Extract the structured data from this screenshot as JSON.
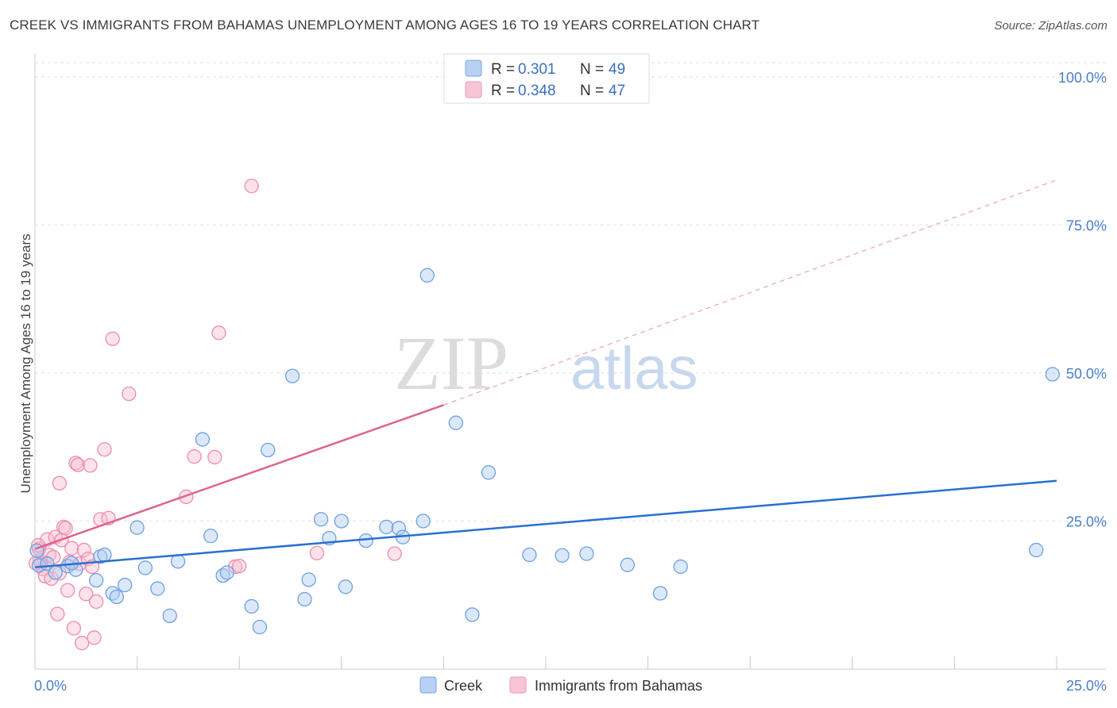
{
  "title": "CREEK VS IMMIGRANTS FROM BAHAMAS UNEMPLOYMENT AMONG AGES 16 TO 19 YEARS CORRELATION CHART",
  "source": "Source: ZipAtlas.com",
  "watermark": {
    "part1": "ZIP",
    "part2": "atlas"
  },
  "colors": {
    "creek": "#6fa0e0",
    "creek_line": "#2a6fd0",
    "bahamas": "#f08cab",
    "bahamas_line": "#e0628e",
    "tick_label": "#4a7fc8"
  },
  "legend": {
    "rows": [
      {
        "r_label": "R =",
        "r_value": "0.301",
        "n_label": "N =",
        "n_value": "49"
      },
      {
        "r_label": "R =",
        "r_value": "0.348",
        "n_label": "N =",
        "n_value": "47"
      }
    ]
  },
  "bottom_legend": {
    "series1": "Creek",
    "series2": "Immigrants from Bahamas"
  },
  "chart_data": {
    "type": "scatter",
    "title": "CREEK VS IMMIGRANTS FROM BAHAMAS UNEMPLOYMENT AMONG AGES 16 TO 19 YEARS CORRELATION CHART",
    "xlabel": "",
    "ylabel": "Unemployment Among Ages 16 to 19 years",
    "xlim": [
      0,
      25
    ],
    "ylim": [
      0,
      105
    ],
    "x_tick_labels": [
      "0.0%",
      "25.0%"
    ],
    "y_tick_labels": [
      {
        "value": 25,
        "label": "25.0%"
      },
      {
        "value": 50,
        "label": "50.0%"
      },
      {
        "value": 75,
        "label": "75.0%"
      },
      {
        "value": 100,
        "label": "100.0%"
      }
    ],
    "series": [
      {
        "name": "Creek",
        "r": 0.301,
        "n": 49,
        "trend": {
          "x1": 0,
          "y1": 17.2,
          "x2": 25,
          "y2": 31.8,
          "dashed_extension": false
        },
        "points": [
          [
            0.1,
            17.5
          ],
          [
            0.3,
            17.8
          ],
          [
            0.5,
            16.3
          ],
          [
            0.8,
            17.4
          ],
          [
            1.0,
            16.8
          ],
          [
            1.5,
            15.0
          ],
          [
            1.6,
            19.0
          ],
          [
            1.7,
            19.3
          ],
          [
            1.9,
            12.8
          ],
          [
            2.0,
            12.2
          ],
          [
            2.2,
            14.2
          ],
          [
            2.5,
            23.9
          ],
          [
            2.7,
            17.1
          ],
          [
            3.0,
            13.6
          ],
          [
            3.3,
            9.0
          ],
          [
            3.5,
            18.2
          ],
          [
            4.1,
            38.8
          ],
          [
            4.3,
            22.5
          ],
          [
            4.6,
            15.8
          ],
          [
            4.7,
            16.3
          ],
          [
            5.3,
            10.6
          ],
          [
            5.5,
            7.1
          ],
          [
            5.7,
            37.0
          ],
          [
            6.3,
            49.5
          ],
          [
            6.6,
            11.8
          ],
          [
            6.7,
            15.1
          ],
          [
            7.0,
            25.3
          ],
          [
            7.2,
            22.1
          ],
          [
            7.5,
            25.0
          ],
          [
            7.6,
            13.9
          ],
          [
            8.1,
            21.7
          ],
          [
            8.6,
            24.0
          ],
          [
            8.9,
            23.8
          ],
          [
            9.0,
            22.3
          ],
          [
            9.5,
            25.0
          ],
          [
            9.6,
            66.5
          ],
          [
            10.3,
            41.6
          ],
          [
            10.7,
            9.2
          ],
          [
            11.1,
            33.2
          ],
          [
            12.1,
            19.3
          ],
          [
            12.9,
            19.2
          ],
          [
            13.5,
            19.5
          ],
          [
            14.5,
            17.6
          ],
          [
            15.3,
            12.8
          ],
          [
            15.8,
            17.3
          ],
          [
            24.5,
            20.1
          ],
          [
            24.9,
            49.8
          ],
          [
            0.05,
            20.0
          ],
          [
            0.9,
            17.9
          ]
        ]
      },
      {
        "name": "Immigrants from Bahamas",
        "r": 0.348,
        "n": 47,
        "trend": {
          "x1": 0,
          "y1": 20.3,
          "x2": 10,
          "y2": 44.6,
          "dashed_extension": true,
          "ext_x2": 25,
          "ext_y2": 82.6
        },
        "points": [
          [
            0.1,
            20.3
          ],
          [
            0.12,
            18.4
          ],
          [
            0.15,
            17.8
          ],
          [
            0.2,
            16.9
          ],
          [
            0.25,
            15.7
          ],
          [
            0.3,
            21.9
          ],
          [
            0.35,
            19.3
          ],
          [
            0.4,
            15.3
          ],
          [
            0.45,
            18.9
          ],
          [
            0.5,
            22.3
          ],
          [
            0.55,
            9.3
          ],
          [
            0.6,
            31.4
          ],
          [
            0.65,
            21.8
          ],
          [
            0.7,
            24.0
          ],
          [
            0.75,
            23.8
          ],
          [
            0.8,
            13.3
          ],
          [
            0.85,
            18.1
          ],
          [
            0.9,
            20.4
          ],
          [
            0.95,
            6.9
          ],
          [
            1.0,
            34.8
          ],
          [
            1.05,
            34.5
          ],
          [
            1.1,
            17.8
          ],
          [
            1.15,
            4.4
          ],
          [
            1.2,
            20.1
          ],
          [
            1.25,
            12.7
          ],
          [
            1.3,
            18.6
          ],
          [
            1.35,
            34.4
          ],
          [
            1.4,
            17.3
          ],
          [
            1.45,
            5.3
          ],
          [
            1.5,
            11.4
          ],
          [
            1.6,
            25.3
          ],
          [
            1.7,
            37.1
          ],
          [
            1.8,
            25.5
          ],
          [
            1.9,
            55.8
          ],
          [
            2.3,
            46.5
          ],
          [
            3.7,
            29.1
          ],
          [
            3.9,
            35.9
          ],
          [
            4.4,
            35.8
          ],
          [
            4.5,
            56.8
          ],
          [
            4.9,
            17.3
          ],
          [
            5.0,
            17.4
          ],
          [
            5.3,
            81.6
          ],
          [
            6.9,
            19.6
          ],
          [
            8.8,
            19.5
          ],
          [
            0.02,
            17.9
          ],
          [
            0.08,
            20.9
          ],
          [
            0.6,
            16.2
          ]
        ]
      }
    ]
  }
}
